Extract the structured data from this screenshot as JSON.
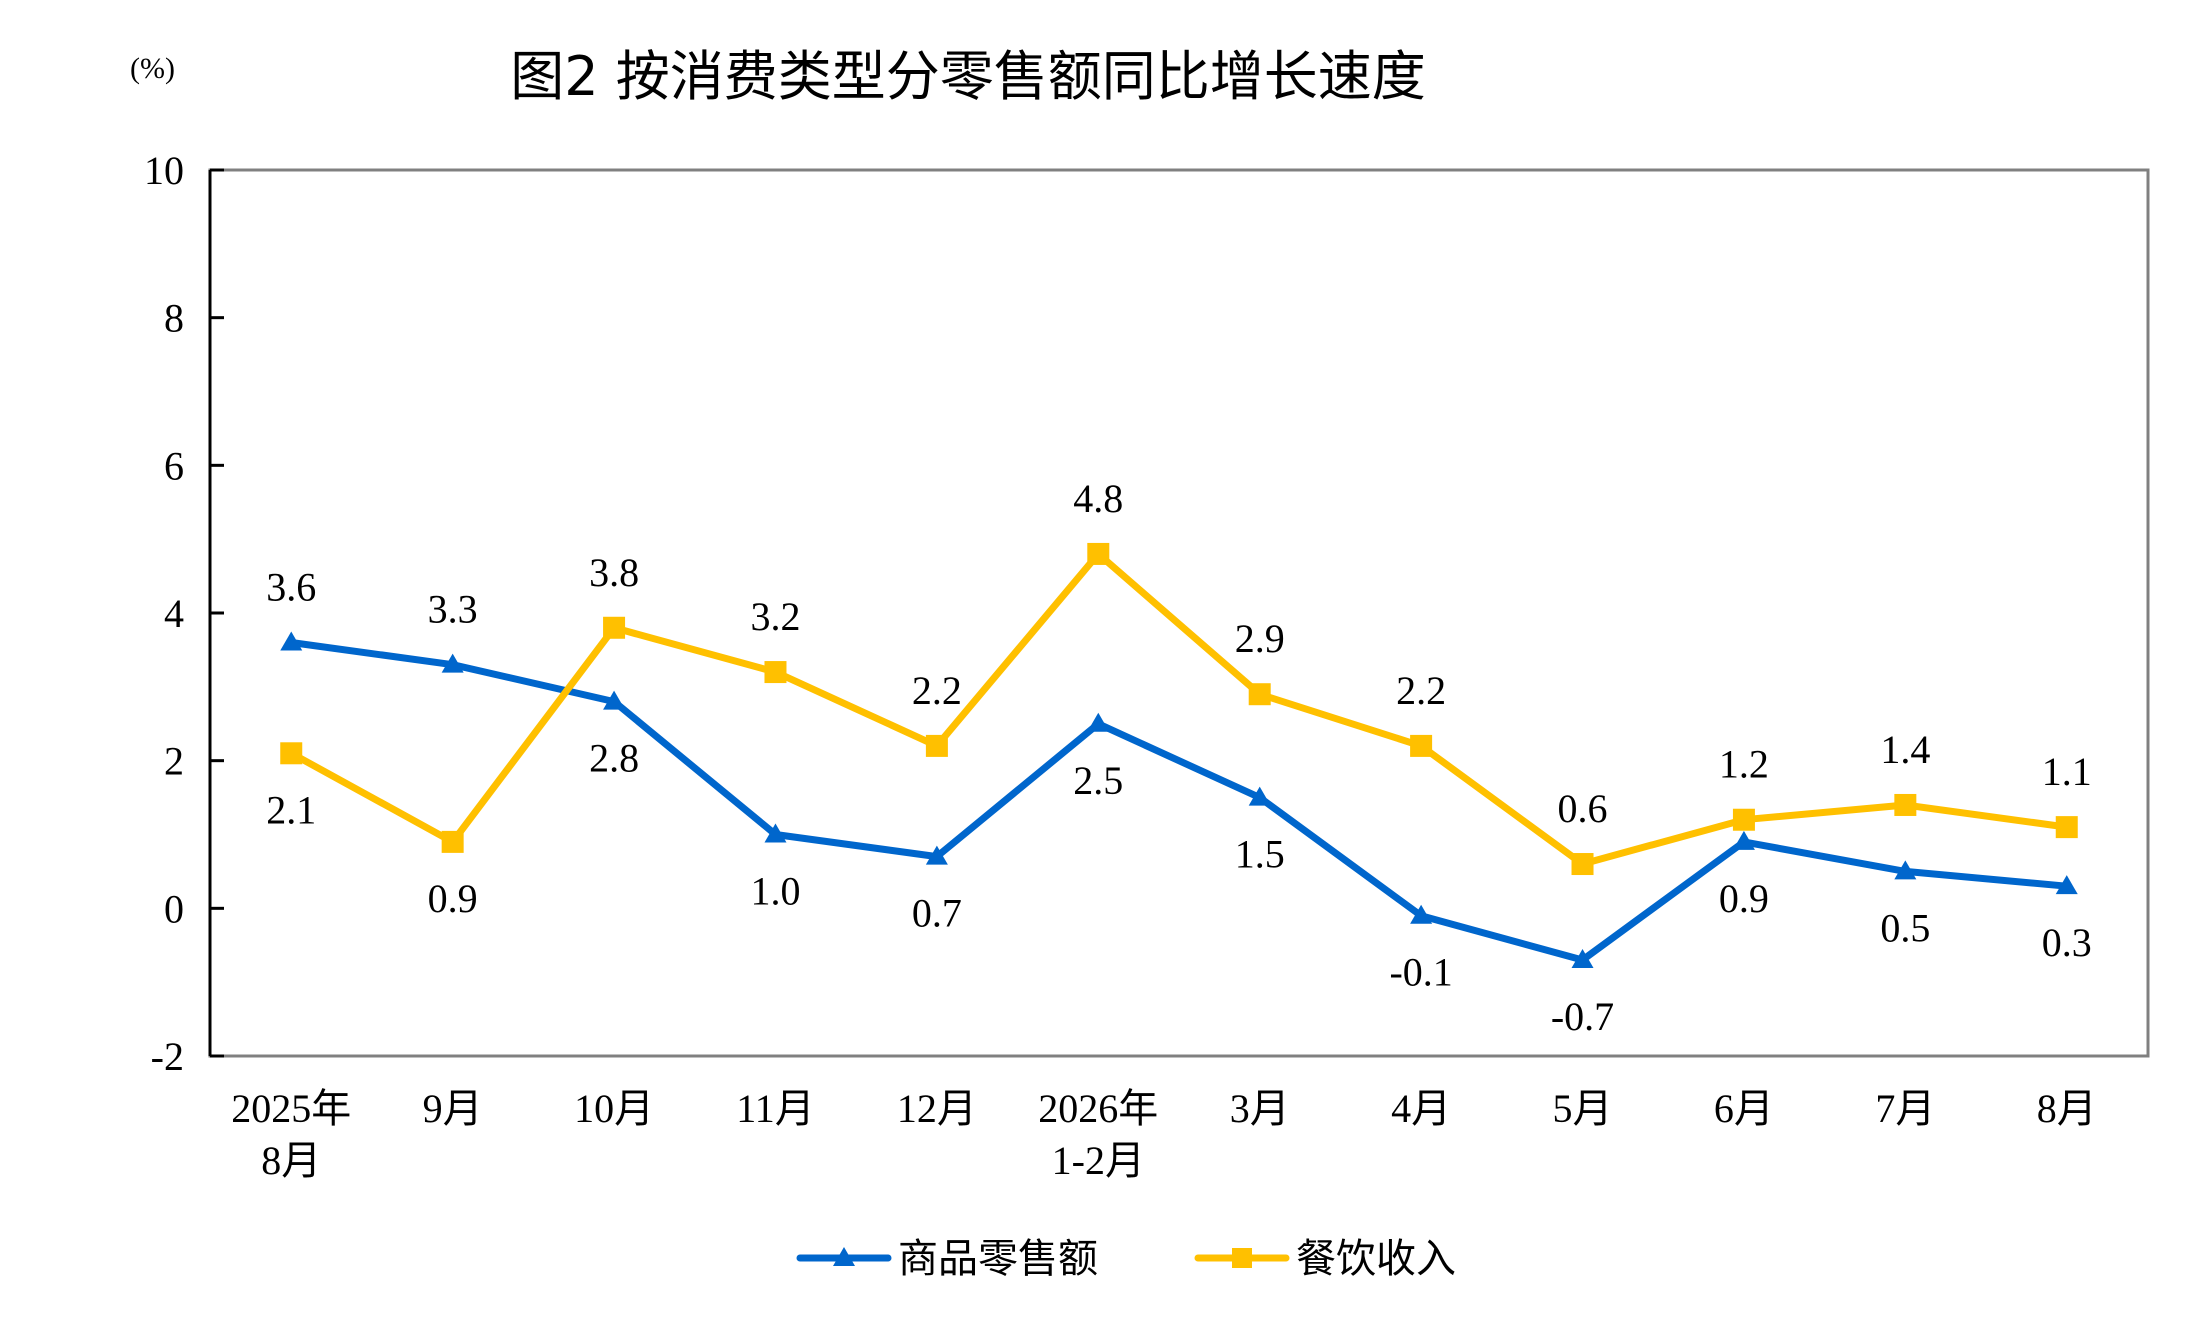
{
  "chart_data": {
    "type": "line",
    "title": "图2  按消费类型分零售额同比增长速度",
    "unit_label": "(%)",
    "categories": [
      [
        "2025年",
        "8月"
      ],
      [
        "9月"
      ],
      [
        "10月"
      ],
      [
        "11月"
      ],
      [
        "12月"
      ],
      [
        "2026年",
        "1-2月"
      ],
      [
        "3月"
      ],
      [
        "4月"
      ],
      [
        "5月"
      ],
      [
        "6月"
      ],
      [
        "7月"
      ],
      [
        "8月"
      ]
    ],
    "y_ticks": [
      "10",
      "8",
      "6",
      "4",
      "2",
      "0",
      "-2"
    ],
    "ylim": [
      -2,
      10
    ],
    "grid": false,
    "legend_position": "bottom-center",
    "series": [
      {
        "name": "商品零售额",
        "color": "#0066CC",
        "marker": "triangle",
        "values": [
          3.6,
          3.3,
          2.8,
          1.0,
          0.7,
          2.5,
          1.5,
          -0.1,
          -0.7,
          0.9,
          0.5,
          0.3
        ],
        "labels": [
          "3.6",
          "3.3",
          "2.8",
          "1.0",
          "0.7",
          "2.5",
          "1.5",
          "-0.1",
          "-0.7",
          "0.9",
          "0.5",
          "0.3"
        ]
      },
      {
        "name": "餐饮收入",
        "color": "#FFC000",
        "marker": "square",
        "values": [
          2.1,
          0.9,
          3.8,
          3.2,
          2.2,
          4.8,
          2.9,
          2.2,
          0.6,
          1.2,
          1.4,
          1.1
        ],
        "labels": [
          "2.1",
          "0.9",
          "3.8",
          "3.2",
          "2.2",
          "4.8",
          "2.9",
          "2.2",
          "0.6",
          "1.2",
          "1.4",
          "1.1"
        ]
      }
    ]
  }
}
